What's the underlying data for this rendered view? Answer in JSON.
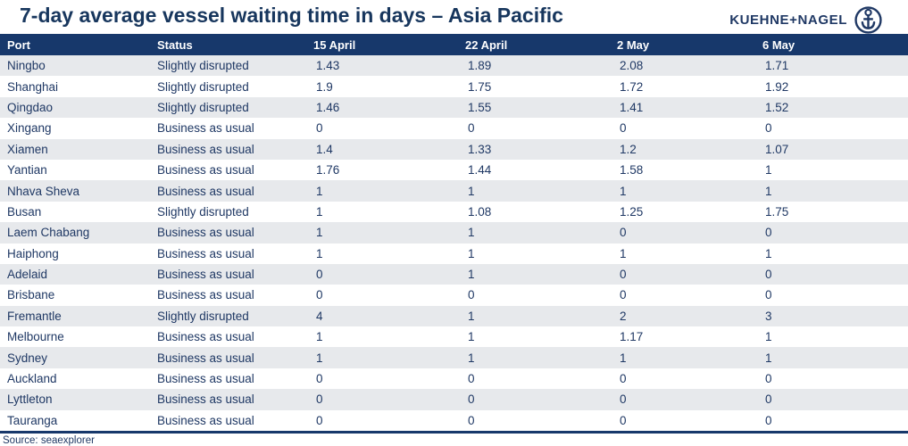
{
  "header": {
    "title": "7-day average vessel waiting time in days – Asia Pacific",
    "logo_text": "KUEHNE+NAGEL",
    "logo_icon": "anchor-icon"
  },
  "table": {
    "columns": [
      "Port",
      "Status",
      "15 April",
      "22 April",
      "2 May",
      "6 May"
    ],
    "rows": [
      {
        "port": "Ningbo",
        "status": "Slightly disrupted",
        "values": [
          "1.43",
          "1.89",
          "2.08",
          "1.71"
        ]
      },
      {
        "port": "Shanghai",
        "status": "Slightly disrupted",
        "values": [
          "1.9",
          "1.75",
          "1.72",
          "1.92"
        ]
      },
      {
        "port": "Qingdao",
        "status": "Slightly disrupted",
        "values": [
          "1.46",
          "1.55",
          "1.41",
          "1.52"
        ]
      },
      {
        "port": "Xingang",
        "status": "Business as usual",
        "values": [
          "0",
          "0",
          "0",
          "0"
        ]
      },
      {
        "port": "Xiamen",
        "status": "Business as usual",
        "values": [
          "1.4",
          "1.33",
          "1.2",
          "1.07"
        ]
      },
      {
        "port": "Yantian",
        "status": "Business as usual",
        "values": [
          "1.76",
          "1.44",
          "1.58",
          "1"
        ]
      },
      {
        "port": "Nhava Sheva",
        "status": "Business as usual",
        "values": [
          "1",
          "1",
          "1",
          "1"
        ]
      },
      {
        "port": "Busan",
        "status": "Slightly disrupted",
        "values": [
          "1",
          "1.08",
          "1.25",
          "1.75"
        ]
      },
      {
        "port": "Laem Chabang",
        "status": "Business as usual",
        "values": [
          "1",
          "1",
          "0",
          "0"
        ]
      },
      {
        "port": "Haiphong",
        "status": "Business as usual",
        "values": [
          "1",
          "1",
          "1",
          "1"
        ]
      },
      {
        "port": "Adelaid",
        "status": "Business as usual",
        "values": [
          "0",
          "1",
          "0",
          "0"
        ]
      },
      {
        "port": "Brisbane",
        "status": "Business as usual",
        "values": [
          "0",
          "0",
          "0",
          "0"
        ]
      },
      {
        "port": "Fremantle",
        "status": "Slightly disrupted",
        "values": [
          "4",
          "1",
          "2",
          "3"
        ]
      },
      {
        "port": "Melbourne",
        "status": "Business as usual",
        "values": [
          "1",
          "1",
          "1.17",
          "1"
        ]
      },
      {
        "port": "Sydney",
        "status": "Business as usual",
        "values": [
          "1",
          "1",
          "1",
          "1"
        ]
      },
      {
        "port": "Auckland",
        "status": "Business as usual",
        "values": [
          "0",
          "0",
          "0",
          "0"
        ]
      },
      {
        "port": "Lyttleton",
        "status": "Business as usual",
        "values": [
          "0",
          "0",
          "0",
          "0"
        ]
      },
      {
        "port": "Tauranga",
        "status": "Business as usual",
        "values": [
          "0",
          "0",
          "0",
          "0"
        ]
      }
    ]
  },
  "footer": {
    "source": "Source: seaexplorer"
  },
  "colors": {
    "header_navy": "#17386B",
    "title_navy": "#17365D",
    "body_text_navy": "#1F3864",
    "stripe_gray": "#E7E9EC",
    "header_text": "#FFFFFF"
  },
  "chart_data": {
    "type": "table",
    "title": "7-day average vessel waiting time in days – Asia Pacific",
    "columns": [
      "Port",
      "Status",
      "15 April",
      "22 April",
      "2 May",
      "6 May"
    ],
    "rows": [
      [
        "Ningbo",
        "Slightly disrupted",
        1.43,
        1.89,
        2.08,
        1.71
      ],
      [
        "Shanghai",
        "Slightly disrupted",
        1.9,
        1.75,
        1.72,
        1.92
      ],
      [
        "Qingdao",
        "Slightly disrupted",
        1.46,
        1.55,
        1.41,
        1.52
      ],
      [
        "Xingang",
        "Business as usual",
        0,
        0,
        0,
        0
      ],
      [
        "Xiamen",
        "Business as usual",
        1.4,
        1.33,
        1.2,
        1.07
      ],
      [
        "Yantian",
        "Business as usual",
        1.76,
        1.44,
        1.58,
        1
      ],
      [
        "Nhava Sheva",
        "Business as usual",
        1,
        1,
        1,
        1
      ],
      [
        "Busan",
        "Slightly disrupted",
        1,
        1.08,
        1.25,
        1.75
      ],
      [
        "Laem Chabang",
        "Business as usual",
        1,
        1,
        0,
        0
      ],
      [
        "Haiphong",
        "Business as usual",
        1,
        1,
        1,
        1
      ],
      [
        "Adelaid",
        "Business as usual",
        0,
        1,
        0,
        0
      ],
      [
        "Brisbane",
        "Business as usual",
        0,
        0,
        0,
        0
      ],
      [
        "Fremantle",
        "Slightly disrupted",
        4,
        1,
        2,
        3
      ],
      [
        "Melbourne",
        "Business as usual",
        1,
        1,
        1.17,
        1
      ],
      [
        "Sydney",
        "Business as usual",
        1,
        1,
        1,
        1
      ],
      [
        "Auckland",
        "Business as usual",
        0,
        0,
        0,
        0
      ],
      [
        "Lyttleton",
        "Business as usual",
        0,
        0,
        0,
        0
      ],
      [
        "Tauranga",
        "Business as usual",
        0,
        0,
        0,
        0
      ]
    ],
    "source": "Source: seaexplorer"
  }
}
